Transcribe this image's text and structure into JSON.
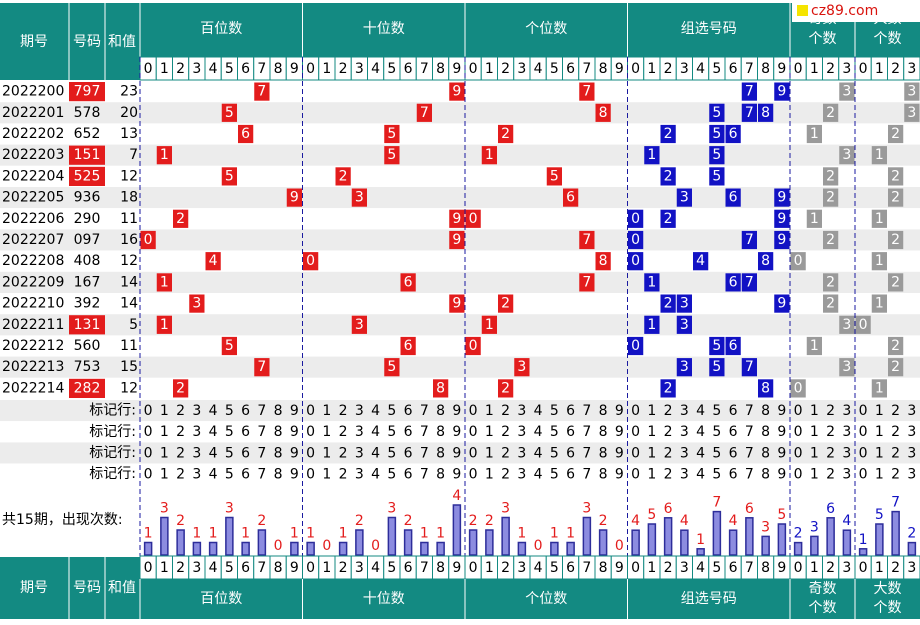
{
  "header": {
    "issue": "期号",
    "number": "号码",
    "sum": "和值",
    "sections": [
      "百位数",
      "十位数",
      "个位数",
      "组选号码"
    ],
    "odd": [
      "奇数",
      "个数"
    ],
    "big": [
      "大数",
      "个数"
    ],
    "digits": [
      0,
      1,
      2,
      3,
      4,
      5,
      6,
      7,
      8,
      9
    ],
    "digits4": [
      0,
      1,
      2,
      3
    ]
  },
  "watermark": "cz89.com",
  "rows": [
    {
      "issue": "2022200",
      "number": "797",
      "sum": 23,
      "hundreds": 7,
      "tens": 9,
      "units": 7,
      "group": [
        7,
        9
      ],
      "odd": 3,
      "big": 3
    },
    {
      "issue": "2022201",
      "number": "578",
      "sum": 20,
      "hundreds": 5,
      "tens": 7,
      "units": 8,
      "group": [
        5,
        7,
        8
      ],
      "odd": 2,
      "big": 3
    },
    {
      "issue": "2022202",
      "number": "652",
      "sum": 13,
      "hundreds": 6,
      "tens": 5,
      "units": 2,
      "group": [
        2,
        5,
        6
      ],
      "odd": 1,
      "big": 2
    },
    {
      "issue": "2022203",
      "number": "151",
      "sum": 7,
      "hundreds": 1,
      "tens": 5,
      "units": 1,
      "group": [
        1,
        5
      ],
      "odd": 3,
      "big": 1
    },
    {
      "issue": "2022204",
      "number": "525",
      "sum": 12,
      "hundreds": 5,
      "tens": 2,
      "units": 5,
      "group": [
        2,
        5
      ],
      "odd": 2,
      "big": 2
    },
    {
      "issue": "2022205",
      "number": "936",
      "sum": 18,
      "hundreds": 9,
      "tens": 3,
      "units": 6,
      "group": [
        3,
        6,
        9
      ],
      "odd": 2,
      "big": 2
    },
    {
      "issue": "2022206",
      "number": "290",
      "sum": 11,
      "hundreds": 2,
      "tens": 9,
      "units": 0,
      "group": [
        0,
        2,
        9
      ],
      "odd": 1,
      "big": 1
    },
    {
      "issue": "2022207",
      "number": "097",
      "sum": 16,
      "hundreds": 0,
      "tens": 9,
      "units": 7,
      "group": [
        0,
        7,
        9
      ],
      "odd": 2,
      "big": 2
    },
    {
      "issue": "2022208",
      "number": "408",
      "sum": 12,
      "hundreds": 4,
      "tens": 0,
      "units": 8,
      "group": [
        0,
        4,
        8
      ],
      "odd": 0,
      "big": 1
    },
    {
      "issue": "2022209",
      "number": "167",
      "sum": 14,
      "hundreds": 1,
      "tens": 6,
      "units": 7,
      "group": [
        1,
        6,
        7
      ],
      "odd": 2,
      "big": 2
    },
    {
      "issue": "2022210",
      "number": "392",
      "sum": 14,
      "hundreds": 3,
      "tens": 9,
      "units": 2,
      "group": [
        2,
        3,
        9
      ],
      "odd": 2,
      "big": 1
    },
    {
      "issue": "2022211",
      "number": "131",
      "sum": 5,
      "hundreds": 1,
      "tens": 3,
      "units": 1,
      "group": [
        1,
        3
      ],
      "odd": 3,
      "big": 0
    },
    {
      "issue": "2022212",
      "number": "560",
      "sum": 11,
      "hundreds": 5,
      "tens": 6,
      "units": 0,
      "group": [
        0,
        5,
        6
      ],
      "odd": 1,
      "big": 2
    },
    {
      "issue": "2022213",
      "number": "753",
      "sum": 15,
      "hundreds": 7,
      "tens": 5,
      "units": 3,
      "group": [
        3,
        5,
        7
      ],
      "odd": 3,
      "big": 2
    },
    {
      "issue": "2022214",
      "number": "282",
      "sum": 12,
      "hundreds": 2,
      "tens": 8,
      "units": 2,
      "group": [
        2,
        8
      ],
      "odd": 0,
      "big": 1
    }
  ],
  "mark_row_label": "标记行:",
  "counts": {
    "label": "共15期，出现次数:",
    "hundreds": [
      1,
      3,
      2,
      1,
      1,
      3,
      1,
      2,
      0,
      1
    ],
    "tens": [
      1,
      0,
      1,
      2,
      0,
      3,
      2,
      1,
      1,
      4
    ],
    "units": [
      2,
      2,
      3,
      1,
      0,
      1,
      1,
      3,
      2,
      0
    ],
    "group": [
      4,
      5,
      6,
      4,
      1,
      7,
      4,
      6,
      3,
      5
    ],
    "odd": [
      2,
      3,
      6,
      4
    ],
    "big": [
      1,
      5,
      7,
      2
    ]
  },
  "colors": {
    "header": "#138a82",
    "position": "#e31c1c",
    "group": "#1212c4",
    "odd_big": "#9a9a9a",
    "bar": "#2d2d9a"
  }
}
